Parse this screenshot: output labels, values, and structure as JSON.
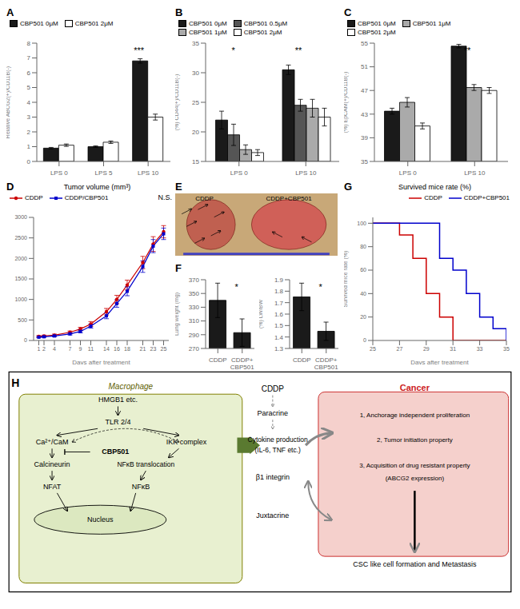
{
  "chart_data": [
    {
      "type": "bar",
      "title": "A",
      "ylabel": "Relative ABCG2(+)/CD11B(-)",
      "categories": [
        "LPS 0",
        "LPS 5",
        "LPS 10"
      ],
      "series": [
        {
          "name": "CBP501 0μM",
          "color": "#1a1a1a",
          "values": [
            0.9,
            1.0,
            6.8
          ],
          "errors": [
            0.05,
            0.05,
            0.15
          ]
        },
        {
          "name": "CBP501 2μM",
          "color": "#ffffff",
          "values": [
            1.1,
            1.3,
            3.0
          ],
          "errors": [
            0.08,
            0.08,
            0.2
          ]
        }
      ],
      "ylim": [
        0,
        8
      ],
      "yticks": [
        0,
        1,
        2,
        3,
        4,
        5,
        6,
        7,
        8
      ],
      "legend": "upper left",
      "grid": false,
      "annotations": [
        {
          "text": "***",
          "category": "LPS 10"
        }
      ]
    },
    {
      "type": "bar",
      "title": "B",
      "ylabel": "(%) CD44(+)/CD11B(-)",
      "categories": [
        "LPS 0",
        "LPS 10"
      ],
      "series": [
        {
          "name": "CBP501 0μM",
          "color": "#1a1a1a",
          "values": [
            22.0,
            30.5
          ],
          "errors": [
            1.5,
            0.8
          ]
        },
        {
          "name": "CBP501 0.5μM",
          "color": "#555555",
          "values": [
            19.5,
            24.5
          ],
          "errors": [
            1.8,
            1.0
          ]
        },
        {
          "name": "CBP501 1μM",
          "color": "#aaaaaa",
          "values": [
            17.0,
            24.0
          ],
          "errors": [
            0.8,
            1.5
          ]
        },
        {
          "name": "CBP501 2μM",
          "color": "#ffffff",
          "values": [
            16.5,
            22.5
          ],
          "errors": [
            0.5,
            1.5
          ]
        }
      ],
      "ylim": [
        15,
        35
      ],
      "yticks": [
        15,
        20,
        25,
        30,
        35
      ],
      "legend": "upper left",
      "grid": false,
      "annotations": [
        {
          "text": "*",
          "category": "LPS 0"
        },
        {
          "text": "**",
          "category": "LPS 10"
        }
      ]
    },
    {
      "type": "bar",
      "title": "C",
      "ylabel": "(%) EpCAM(+)/CD11B(-)",
      "categories": [
        "LPS 0",
        "LPS 10"
      ],
      "series": [
        {
          "name": "CBP501 0μM",
          "color": "#1a1a1a",
          "values": [
            43.5,
            54.5
          ],
          "errors": [
            0.5,
            0.3
          ]
        },
        {
          "name": "CBP501 1μM",
          "color": "#aaaaaa",
          "values": [
            45.0,
            47.5
          ],
          "errors": [
            0.8,
            0.5
          ]
        },
        {
          "name": "CBP501 2μM",
          "color": "#ffffff",
          "values": [
            41.0,
            47.0
          ],
          "errors": [
            0.5,
            0.5
          ]
        }
      ],
      "ylim": [
        35,
        55
      ],
      "yticks": [
        35,
        39,
        43,
        47,
        51,
        55
      ],
      "legend": "upper left",
      "grid": false,
      "annotations": [
        {
          "text": "**",
          "category": "LPS 10"
        }
      ]
    },
    {
      "type": "line",
      "title": "D",
      "subtitle": "Tumor volume (mm³)",
      "xlabel": "Days after treatment",
      "x": [
        1,
        2,
        4,
        7,
        9,
        11,
        14,
        16,
        18,
        21,
        23,
        25
      ],
      "series": [
        {
          "name": "CDDP",
          "color": "#cc0000",
          "marker": "circle",
          "values": [
            100,
            110,
            130,
            200,
            280,
            400,
            700,
            1000,
            1350,
            1900,
            2350,
            2650
          ],
          "errors": [
            20,
            20,
            25,
            30,
            40,
            60,
            80,
            100,
            120,
            150,
            180,
            150
          ]
        },
        {
          "name": "CDDP/CBP501",
          "color": "#0000cc",
          "marker": "square",
          "values": [
            80,
            90,
            110,
            160,
            220,
            350,
            600,
            900,
            1200,
            1800,
            2300,
            2600
          ],
          "errors": [
            15,
            15,
            20,
            25,
            35,
            50,
            70,
            90,
            110,
            140,
            160,
            140
          ]
        }
      ],
      "xlim": [
        0,
        26
      ],
      "xticks": [
        1,
        2,
        4,
        7,
        9,
        11,
        14,
        16,
        18,
        21,
        23,
        25
      ],
      "ylim": [
        0,
        3000
      ],
      "yticks": [
        0,
        500,
        1000,
        1500,
        2000,
        2500,
        3000
      ],
      "legend": "upper left",
      "grid": false,
      "annotations": [
        {
          "text": "N.S."
        }
      ]
    },
    {
      "type": "diagram",
      "title": "E",
      "annotations": [
        "CDDP",
        "CDDP+CBP501"
      ]
    },
    {
      "type": "bar",
      "title": "F",
      "ylabel": "Lung weight (mg)",
      "categories": [
        "CDDP",
        "CDDP+\nCBP501"
      ],
      "values": [
        340,
        293
      ],
      "errors": [
        25,
        20
      ],
      "color": "#1a1a1a",
      "ylim": [
        270,
        370
      ],
      "yticks": [
        270,
        290,
        310,
        330,
        350,
        370
      ],
      "grid": false,
      "annotations": [
        {
          "text": "*",
          "category": "CDDP+\nCBP501"
        }
      ]
    },
    {
      "type": "bar",
      "ylabel": "(%) LW/BW",
      "categories": [
        "CDDP",
        "CDDP+\nCBP501"
      ],
      "values": [
        1.75,
        1.45
      ],
      "errors": [
        0.12,
        0.08
      ],
      "color": "#1a1a1a",
      "ylim": [
        1.3,
        1.9
      ],
      "yticks": [
        1.3,
        1.4,
        1.5,
        1.6,
        1.7,
        1.8,
        1.9
      ],
      "grid": false,
      "annotations": [
        {
          "text": "*",
          "category": "CDDP+\nCBP501"
        }
      ]
    },
    {
      "type": "step",
      "title": "G",
      "subtitle": "Survived mice rate (%)",
      "xlabel": "Days after treatment",
      "ylabel": "Survived mice rate (%)",
      "series": [
        {
          "name": "CDDP",
          "color": "#cc0000",
          "x": [
            25,
            27,
            28,
            29,
            30,
            31,
            35
          ],
          "values": [
            100,
            90,
            70,
            40,
            20,
            0,
            0
          ]
        },
        {
          "name": "CDDP+CBP501",
          "color": "#0000cc",
          "x": [
            25,
            29,
            30,
            31,
            32,
            33,
            34,
            35
          ],
          "values": [
            100,
            100,
            70,
            60,
            40,
            20,
            10,
            0
          ]
        }
      ],
      "xlim": [
        25,
        35
      ],
      "xticks": [
        25,
        27,
        29,
        31,
        33,
        35
      ],
      "ylim": [
        0,
        105
      ],
      "yticks": [
        0,
        20,
        40,
        60,
        80,
        100
      ],
      "legend": "upper right",
      "grid": false
    },
    {
      "type": "diagram",
      "title": "H",
      "annotations": [
        "Macrophage",
        "Cancer",
        "HMGB1 etc.",
        "TLR 2/4",
        "Ca²⁺/CaM",
        "Calcineurin",
        "NFAT",
        "IKK complex",
        "NFκB translocation",
        "NFκB",
        "CBP501",
        "Nucleus",
        "CDDP",
        "Paracrine",
        "Cytokine production",
        "(IL-6, TNF etc.)",
        "β1 integrin",
        "Juxtacrine",
        "1, Anchorage independent proliferation",
        "2, Tumor initiation property",
        "3, Acquisition of drug resistant property",
        "(ABCG2 expression)",
        "CSC like cell formation and Metastasis"
      ]
    }
  ]
}
